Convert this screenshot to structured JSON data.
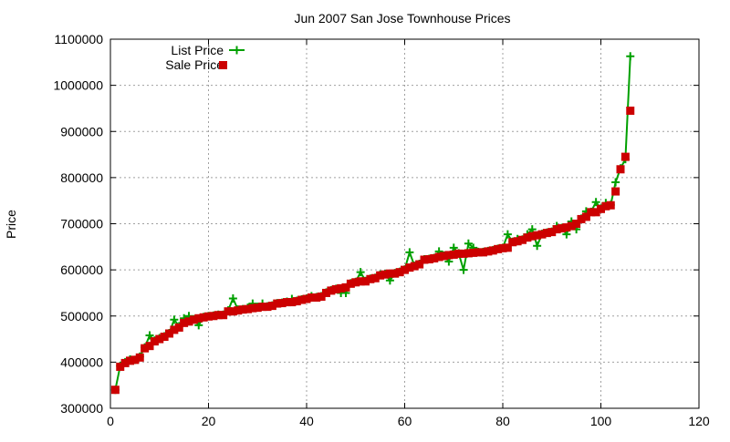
{
  "chart_data": {
    "type": "line",
    "title": "Jun 2007 San Jose Townhouse Prices",
    "xlabel": "",
    "ylabel": "Price",
    "xlim": [
      0,
      120
    ],
    "ylim": [
      300000,
      1100000
    ],
    "xticks": [
      0,
      20,
      40,
      60,
      80,
      100,
      120
    ],
    "yticks": [
      300000,
      400000,
      500000,
      600000,
      700000,
      800000,
      900000,
      1000000,
      1100000
    ],
    "grid": true,
    "legend": "top-left",
    "series": [
      {
        "name": "List Price",
        "color": "#00a000",
        "style": "linespoints-plus",
        "values": [
          340000,
          392000,
          400000,
          406000,
          405000,
          412000,
          432000,
          458000,
          447000,
          452000,
          456000,
          463000,
          492000,
          478000,
          495000,
          500000,
          493000,
          480000,
          498000,
          500000,
          501000,
          503000,
          503000,
          512000,
          538000,
          514000,
          515000,
          518000,
          527000,
          520000,
          527000,
          521000,
          523000,
          528000,
          529000,
          531000,
          537000,
          533000,
          536000,
          538000,
          543000,
          541000,
          543000,
          551000,
          556000,
          559000,
          550000,
          550000,
          571000,
          574000,
          595000,
          576000,
          581000,
          583000,
          590000,
          591000,
          577000,
          593000,
          596000,
          601000,
          638000,
          609000,
          613000,
          623000,
          624000,
          626000,
          640000,
          631000,
          618000,
          648000,
          636000,
          600000,
          657000,
          648000,
          639000,
          639000,
          641000,
          643000,
          646000,
          648000,
          677000,
          661000,
          667000,
          666000,
          677000,
          688000,
          652000,
          678000,
          681000,
          683000,
          695000,
          691000,
          677000,
          705000,
          688000,
          711000,
          727000,
          726000,
          747000,
          733000,
          745000,
          741000,
          790000,
          820000,
          840000,
          1063000
        ]
      },
      {
        "name": "Sale Price",
        "color": "#cc0000",
        "style": "points-square",
        "values": [
          340000,
          390000,
          398000,
          403000,
          405000,
          410000,
          430000,
          435000,
          445000,
          450000,
          455000,
          462000,
          470000,
          475000,
          485000,
          488000,
          492000,
          495000,
          497000,
          499000,
          500000,
          502000,
          502000,
          510000,
          510000,
          512000,
          514000,
          515000,
          517000,
          518000,
          520000,
          520000,
          522000,
          527000,
          528000,
          530000,
          530000,
          532000,
          535000,
          537000,
          540000,
          540000,
          542000,
          550000,
          555000,
          558000,
          560000,
          562000,
          570000,
          573000,
          575000,
          575000,
          580000,
          582000,
          588000,
          590000,
          592000,
          592000,
          595000,
          600000,
          605000,
          608000,
          612000,
          622000,
          623000,
          625000,
          628000,
          630000,
          632000,
          633000,
          635000,
          635000,
          636000,
          637000,
          638000,
          638000,
          640000,
          642000,
          645000,
          647000,
          648000,
          660000,
          662000,
          665000,
          670000,
          673000,
          675000,
          677000,
          680000,
          682000,
          688000,
          690000,
          692000,
          695000,
          700000,
          710000,
          715000,
          725000,
          725000,
          732000,
          738000,
          740000,
          770000,
          818000,
          845000,
          945000
        ]
      }
    ]
  }
}
